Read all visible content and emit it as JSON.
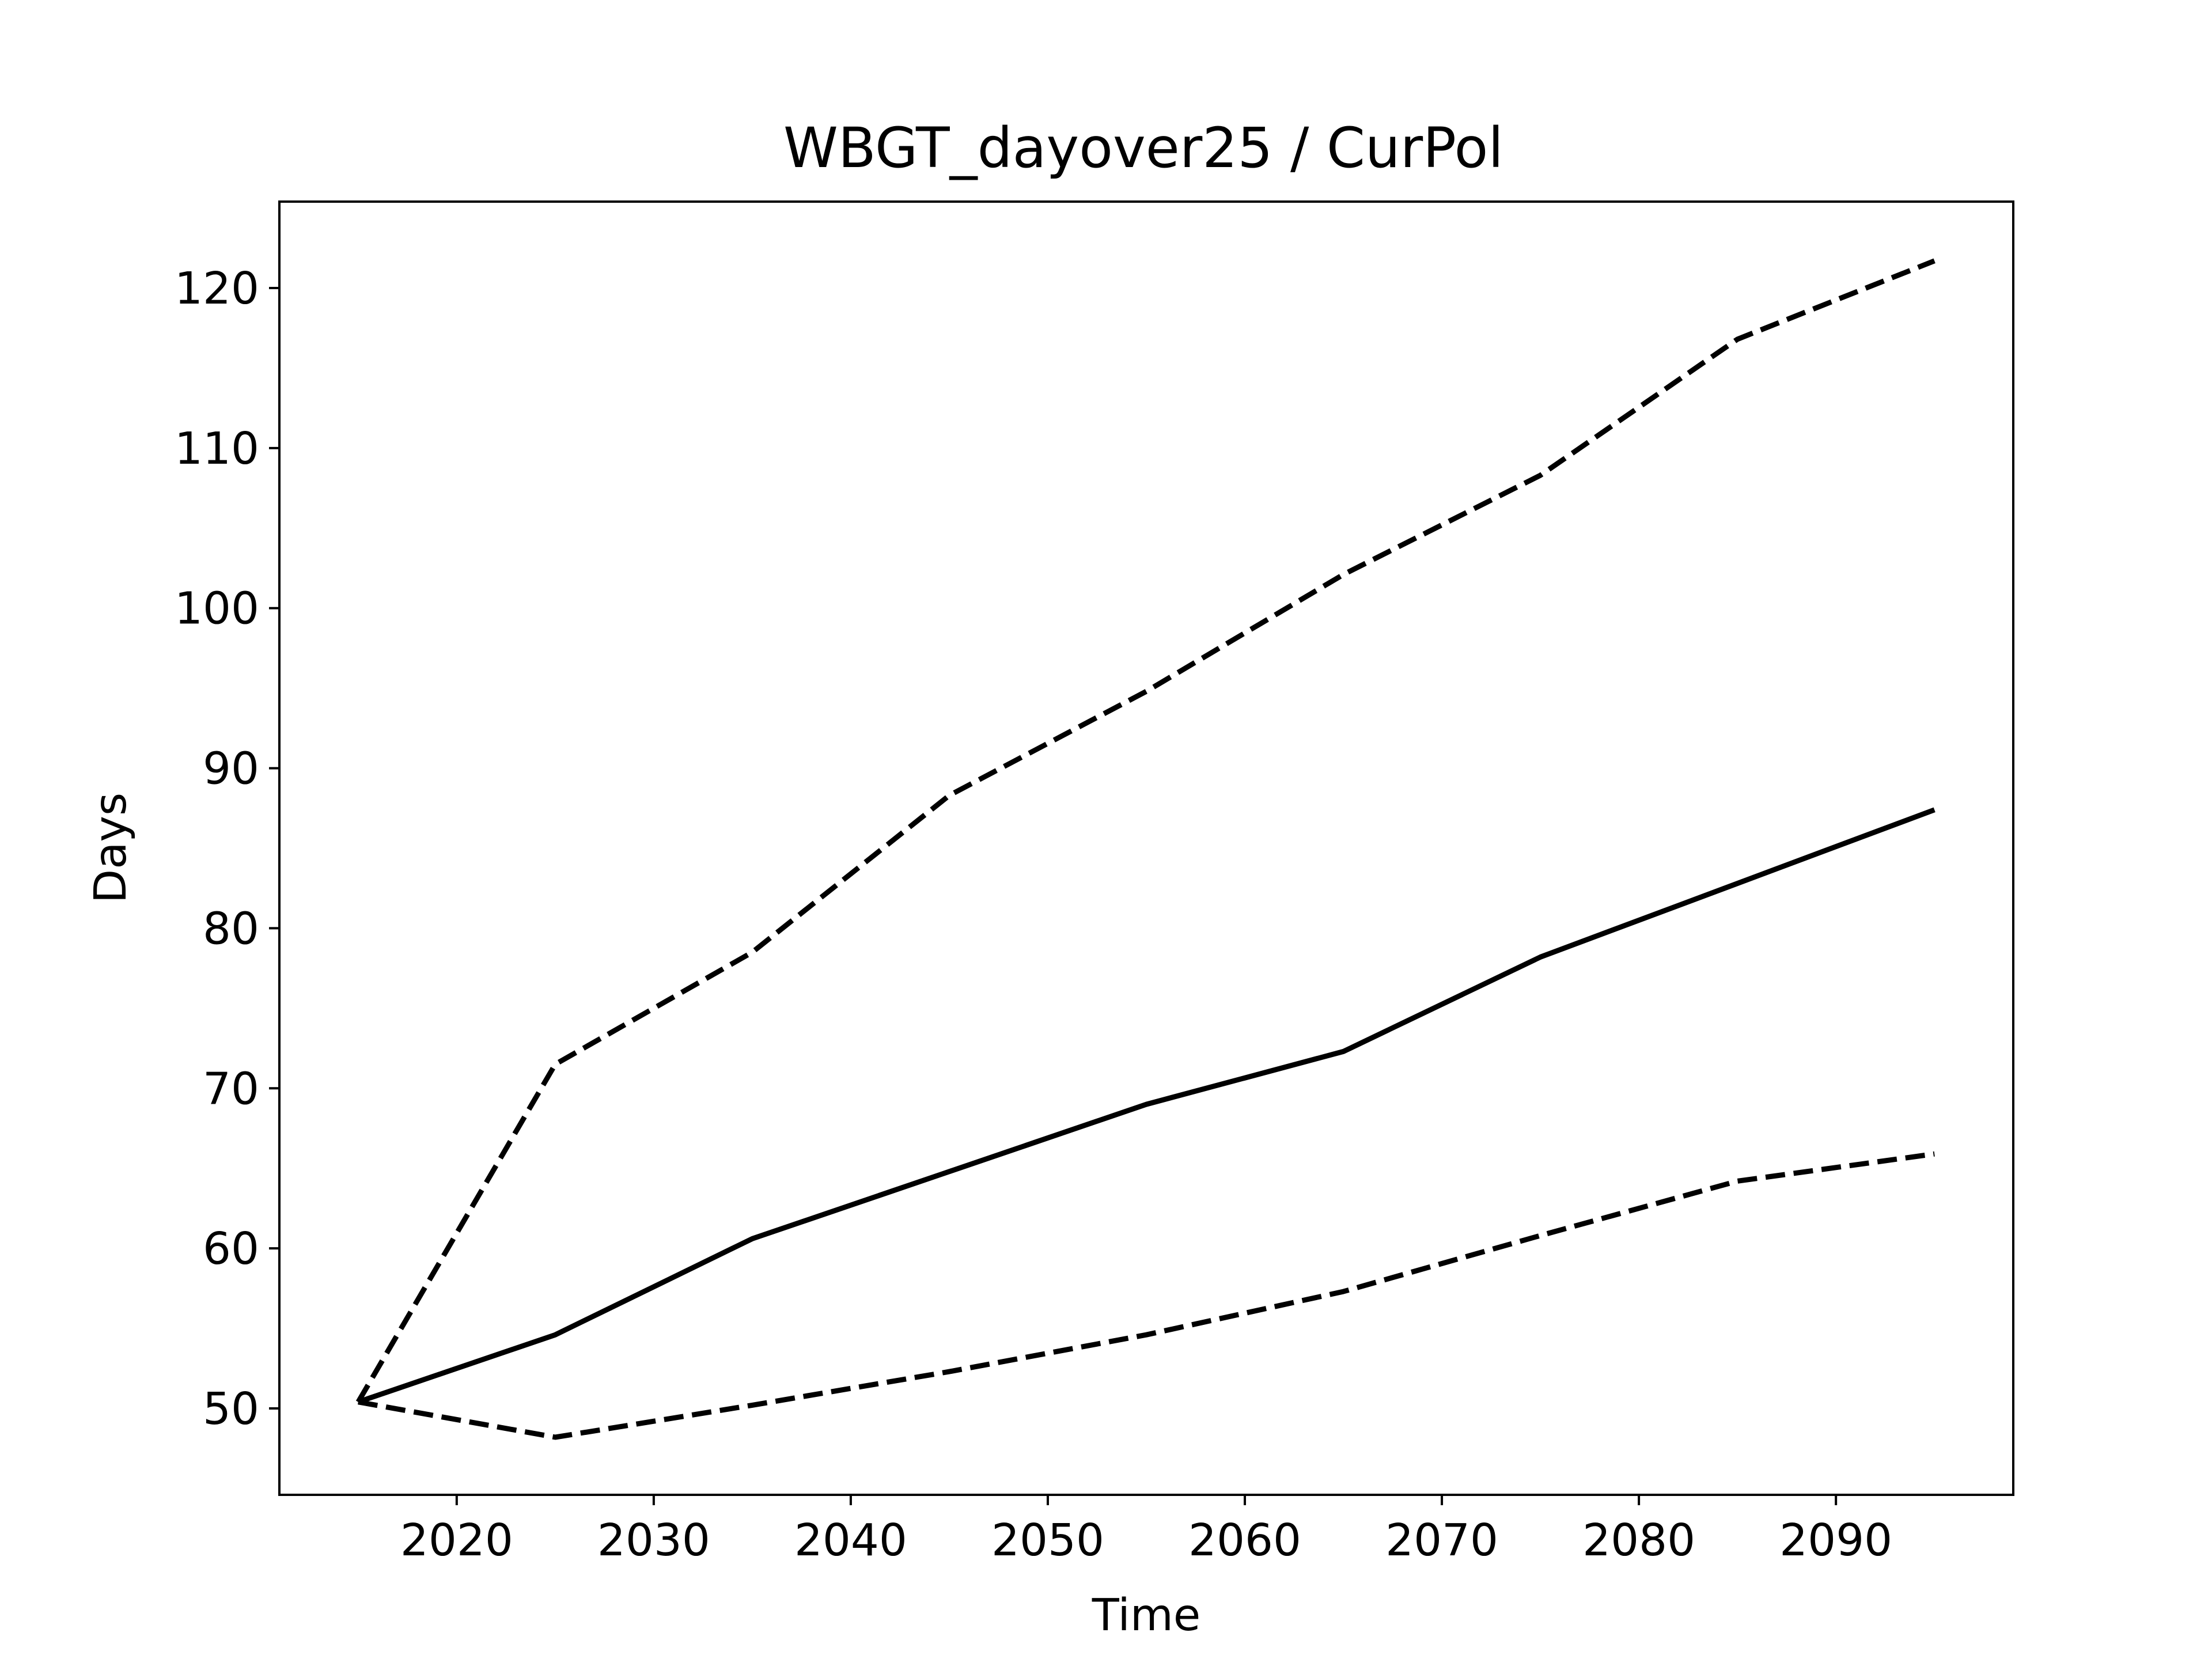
{
  "chart_data": {
    "type": "line",
    "title": "WBGT_dayover25 / CurPol",
    "xlabel": "Time",
    "ylabel": "Days",
    "xlim": [
      2011,
      2099
    ],
    "ylim": [
      44.6,
      125.4
    ],
    "xticks": [
      "2020",
      "2030",
      "2040",
      "2050",
      "2060",
      "2070",
      "2080",
      "2090"
    ],
    "yticks": [
      "50",
      "60",
      "70",
      "80",
      "90",
      "100",
      "110",
      "120"
    ],
    "grid": false,
    "legend": "none",
    "x": [
      2015,
      2025,
      2035,
      2045,
      2055,
      2065,
      2075,
      2085,
      2095
    ],
    "series": [
      {
        "style": "dashed",
        "color": "#000000",
        "values": [
          50.4,
          71.5,
          78.5,
          88.3,
          94.8,
          102.1,
          108.3,
          116.8,
          121.7
        ]
      },
      {
        "style": "solid",
        "color": "#000000",
        "values": [
          50.4,
          54.6,
          60.6,
          64.8,
          69.0,
          72.3,
          78.2,
          82.8,
          87.4
        ]
      },
      {
        "style": "dashed",
        "color": "#000000",
        "values": [
          50.4,
          48.2,
          50.2,
          52.3,
          54.6,
          57.3,
          60.8,
          64.2,
          65.9
        ]
      }
    ]
  }
}
